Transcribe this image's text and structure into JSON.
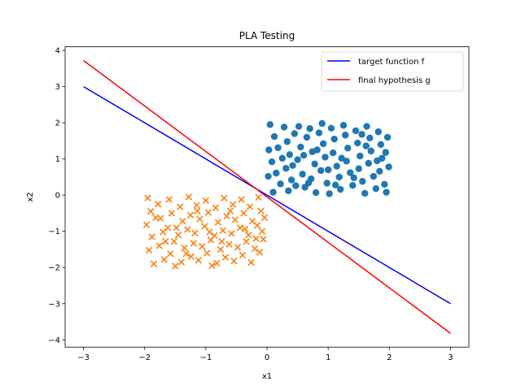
{
  "chart_data": {
    "type": "scatter",
    "title": "PLA Testing",
    "xlabel": "x1",
    "ylabel": "x2",
    "xlim": [
      -3.3,
      3.3
    ],
    "ylim": [
      -4.2,
      4.1
    ],
    "grid": false,
    "legend_position": "top-right",
    "x_ticks": [
      -3,
      -2,
      -1,
      0,
      1,
      2,
      3
    ],
    "y_ticks": [
      -4,
      -3,
      -2,
      -1,
      0,
      1,
      2,
      3,
      4
    ],
    "lines": [
      {
        "name": "target function f",
        "color": "#0000ff",
        "x": [
          -3,
          3
        ],
        "y": [
          3,
          -3
        ]
      },
      {
        "name": "final hypothesis g",
        "color": "#ff0000",
        "x": [
          -3,
          3
        ],
        "y": [
          3.72,
          -3.82
        ]
      }
    ],
    "scatter_series": [
      {
        "marker": "circle",
        "color": "#1f77b4",
        "region": {
          "x": [
            0,
            2
          ],
          "y": [
            0,
            2
          ]
        },
        "points": [
          [
            0.05,
            1.95
          ],
          [
            0.12,
            1.62
          ],
          [
            0.18,
            1.31
          ],
          [
            0.08,
            0.92
          ],
          [
            0.15,
            0.61
          ],
          [
            0.22,
            0.31
          ],
          [
            0.1,
            0.08
          ],
          [
            0.28,
            1.88
          ],
          [
            0.33,
            1.48
          ],
          [
            0.37,
            1.12
          ],
          [
            0.31,
            0.74
          ],
          [
            0.4,
            0.42
          ],
          [
            0.35,
            0.12
          ],
          [
            0.45,
            1.7
          ],
          [
            0.52,
            1.9
          ],
          [
            0.55,
            1.33
          ],
          [
            0.5,
            0.98
          ],
          [
            0.58,
            0.58
          ],
          [
            0.62,
            0.22
          ],
          [
            0.65,
            1.6
          ],
          [
            0.7,
            1.84
          ],
          [
            0.74,
            1.2
          ],
          [
            0.78,
            0.86
          ],
          [
            0.72,
            0.45
          ],
          [
            0.8,
            0.07
          ],
          [
            0.85,
            1.72
          ],
          [
            0.9,
            1.98
          ],
          [
            0.92,
            1.42
          ],
          [
            0.95,
            1.05
          ],
          [
            0.88,
            0.68
          ],
          [
            0.98,
            0.33
          ],
          [
            1.02,
            0.04
          ],
          [
            1.05,
            1.85
          ],
          [
            1.1,
            1.55
          ],
          [
            1.08,
            1.17
          ],
          [
            1.14,
            0.8
          ],
          [
            1.18,
            0.5
          ],
          [
            1.2,
            0.16
          ],
          [
            1.25,
            1.93
          ],
          [
            1.28,
            1.66
          ],
          [
            1.32,
            1.3
          ],
          [
            1.3,
            0.94
          ],
          [
            1.36,
            0.62
          ],
          [
            1.4,
            0.27
          ],
          [
            1.45,
            1.78
          ],
          [
            1.48,
            1.44
          ],
          [
            1.52,
            1.08
          ],
          [
            1.5,
            0.73
          ],
          [
            1.56,
            0.38
          ],
          [
            1.6,
            0.05
          ],
          [
            1.63,
            1.9
          ],
          [
            1.68,
            1.58
          ],
          [
            1.7,
            1.22
          ],
          [
            1.66,
            0.88
          ],
          [
            1.74,
            0.52
          ],
          [
            1.78,
            0.18
          ],
          [
            1.82,
            1.75
          ],
          [
            1.86,
            1.4
          ],
          [
            1.88,
            1.02
          ],
          [
            1.84,
            0.66
          ],
          [
            1.92,
            0.3
          ],
          [
            1.95,
            0.08
          ],
          [
            1.97,
            1.6
          ],
          [
            1.94,
            1.18
          ],
          [
            1.99,
            0.78
          ],
          [
            0.03,
            1.25
          ],
          [
            0.02,
            0.52
          ],
          [
            0.25,
            1.02
          ],
          [
            0.42,
            0.82
          ],
          [
            0.6,
            1.1
          ],
          [
            0.82,
            1.25
          ],
          [
            1.0,
            0.7
          ],
          [
            1.22,
            1.02
          ],
          [
            1.42,
            0.48
          ],
          [
            1.62,
            1.36
          ],
          [
            1.8,
            0.95
          ],
          [
            0.47,
            0.26
          ],
          [
            0.68,
            0.34
          ],
          [
            1.12,
            0.28
          ],
          [
            1.55,
            1.68
          ]
        ]
      },
      {
        "marker": "x",
        "color": "#ff7f0e",
        "region": {
          "x": [
            -2,
            0
          ],
          "y": [
            -2,
            0
          ]
        },
        "points": [
          [
            -1.95,
            -0.08
          ],
          [
            -1.9,
            -0.45
          ],
          [
            -1.97,
            -0.82
          ],
          [
            -1.88,
            -1.15
          ],
          [
            -1.93,
            -1.52
          ],
          [
            -1.85,
            -1.9
          ],
          [
            -1.78,
            -0.25
          ],
          [
            -1.74,
            -0.64
          ],
          [
            -1.7,
            -1.02
          ],
          [
            -1.76,
            -1.4
          ],
          [
            -1.68,
            -1.78
          ],
          [
            -1.6,
            -0.12
          ],
          [
            -1.56,
            -0.5
          ],
          [
            -1.62,
            -0.9
          ],
          [
            -1.52,
            -1.28
          ],
          [
            -1.58,
            -1.62
          ],
          [
            -1.5,
            -1.96
          ],
          [
            -1.42,
            -0.32
          ],
          [
            -1.38,
            -0.72
          ],
          [
            -1.45,
            -1.1
          ],
          [
            -1.35,
            -1.46
          ],
          [
            -1.4,
            -1.85
          ],
          [
            -1.28,
            -0.05
          ],
          [
            -1.25,
            -0.55
          ],
          [
            -1.3,
            -0.95
          ],
          [
            -1.2,
            -1.33
          ],
          [
            -1.24,
            -1.7
          ],
          [
            -1.15,
            -0.28
          ],
          [
            -1.1,
            -0.66
          ],
          [
            -1.18,
            -1.05
          ],
          [
            -1.06,
            -1.42
          ],
          [
            -1.12,
            -1.8
          ],
          [
            -1.0,
            -0.15
          ],
          [
            -0.96,
            -0.48
          ],
          [
            -1.02,
            -0.86
          ],
          [
            -0.92,
            -1.24
          ],
          [
            -0.98,
            -1.6
          ],
          [
            -0.9,
            -1.95
          ],
          [
            -0.84,
            -0.35
          ],
          [
            -0.8,
            -0.75
          ],
          [
            -0.86,
            -1.12
          ],
          [
            -0.76,
            -1.5
          ],
          [
            -0.82,
            -1.88
          ],
          [
            -0.7,
            -0.08
          ],
          [
            -0.66,
            -0.58
          ],
          [
            -0.72,
            -0.98
          ],
          [
            -0.62,
            -1.36
          ],
          [
            -0.68,
            -1.72
          ],
          [
            -0.56,
            -0.26
          ],
          [
            -0.52,
            -0.68
          ],
          [
            -0.58,
            -1.06
          ],
          [
            -0.48,
            -1.44
          ],
          [
            -0.54,
            -1.82
          ],
          [
            -0.42,
            -0.12
          ],
          [
            -0.38,
            -0.5
          ],
          [
            -0.44,
            -0.9
          ],
          [
            -0.34,
            -1.28
          ],
          [
            -0.4,
            -1.66
          ],
          [
            -0.28,
            -0.32
          ],
          [
            -0.24,
            -0.72
          ],
          [
            -0.3,
            -1.1
          ],
          [
            -0.2,
            -1.48
          ],
          [
            -0.26,
            -1.86
          ],
          [
            -0.14,
            -0.06
          ],
          [
            -0.1,
            -0.44
          ],
          [
            -0.16,
            -0.84
          ],
          [
            -0.06,
            -1.22
          ],
          [
            -0.12,
            -1.58
          ],
          [
            -0.04,
            -0.62
          ],
          [
            -0.08,
            -1.0
          ],
          [
            -1.82,
            -0.62
          ],
          [
            -1.66,
            -1.28
          ],
          [
            -1.48,
            -0.9
          ],
          [
            -1.32,
            -1.62
          ],
          [
            -1.14,
            -0.44
          ],
          [
            -0.94,
            -1.02
          ],
          [
            -0.74,
            -1.28
          ],
          [
            -0.6,
            -0.44
          ],
          [
            -0.36,
            -0.94
          ],
          [
            -0.18,
            -1.2
          ]
        ]
      }
    ]
  }
}
